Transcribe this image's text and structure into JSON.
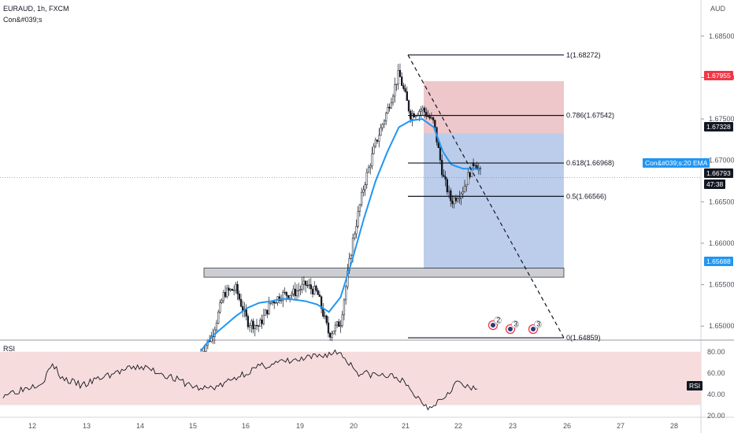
{
  "header": {
    "symbol_line": "EURAUD, 1h, FXCM",
    "indicator_line": "Con&#039;s"
  },
  "price_axis": {
    "currency": "AUD",
    "tags": {
      "upper_zone": "1.67955",
      "mid_zone": "1.67328",
      "current_price": "1.66793",
      "countdown": "47:38",
      "lower_zone": "1.65688",
      "ema_label": "Con&#039;s:20 EMA"
    }
  },
  "rsi_panel": {
    "label": "RSI",
    "tag": "RSI"
  },
  "colors": {
    "ema": "#2196f3",
    "profit_zone": "#9fb8e3",
    "loss_zone": "#e8b4b8",
    "rsi_band": "#f6dcdc",
    "candle": "#131722",
    "tag_red": "#f23645",
    "tag_blue": "#2196f3",
    "tag_dark": "#131722"
  },
  "markers": [
    {
      "icon": "event-flag-icon",
      "count": "2"
    },
    {
      "icon": "event-flag-icon",
      "count": "3"
    },
    {
      "icon": "event-flag-icon",
      "count": "3"
    }
  ],
  "chart_data": {
    "type": "candlestick",
    "symbol": "EURAUD",
    "timeframe": "1h",
    "price_range": [
      1.6485,
      1.6865
    ],
    "y_ticks": [
      "1.65000",
      "1.65500",
      "1.66000",
      "1.66500",
      "1.67000",
      "1.67500",
      "1.68000",
      "1.68500"
    ],
    "x_ticks": [
      "12",
      "13",
      "14",
      "15",
      "16",
      "19",
      "20",
      "21",
      "22",
      "23",
      "26",
      "27",
      "28"
    ],
    "close_path": [
      [
        0,
        1.6468
      ],
      [
        10,
        1.649
      ],
      [
        20,
        1.654
      ],
      [
        30,
        1.6545
      ],
      [
        40,
        1.6505
      ],
      [
        50,
        1.65
      ],
      [
        60,
        1.6528
      ],
      [
        70,
        1.6538
      ],
      [
        80,
        1.654
      ],
      [
        90,
        1.655
      ],
      [
        100,
        1.654
      ],
      [
        110,
        1.649
      ],
      [
        120,
        1.6505
      ],
      [
        130,
        1.66
      ],
      [
        140,
        1.667
      ],
      [
        150,
        1.672
      ],
      [
        160,
        1.676
      ],
      [
        170,
        1.6805
      ],
      [
        175,
        1.678
      ],
      [
        180,
        1.6755
      ],
      [
        190,
        1.6762
      ],
      [
        200,
        1.6745
      ],
      [
        208,
        1.668
      ],
      [
        215,
        1.665
      ],
      [
        225,
        1.6665
      ],
      [
        235,
        1.67
      ],
      [
        240,
        1.6685
      ]
    ],
    "ema_path": [
      [
        0,
        1.647
      ],
      [
        10,
        1.6488
      ],
      [
        20,
        1.65
      ],
      [
        30,
        1.6512
      ],
      [
        40,
        1.6522
      ],
      [
        50,
        1.6528
      ],
      [
        60,
        1.653
      ],
      [
        70,
        1.6533
      ],
      [
        80,
        1.6532
      ],
      [
        90,
        1.653
      ],
      [
        100,
        1.6526
      ],
      [
        110,
        1.6517
      ],
      [
        120,
        1.6535
      ],
      [
        130,
        1.658
      ],
      [
        140,
        1.663
      ],
      [
        150,
        1.6675
      ],
      [
        160,
        1.671
      ],
      [
        170,
        1.674
      ],
      [
        180,
        1.6748
      ],
      [
        190,
        1.675
      ],
      [
        200,
        1.674
      ],
      [
        208,
        1.671
      ],
      [
        215,
        1.6695
      ],
      [
        225,
        1.669
      ],
      [
        235,
        1.669
      ],
      [
        240,
        1.6688
      ]
    ],
    "fibonacci": [
      {
        "label": "1(1.68272)",
        "price": 1.68272
      },
      {
        "label": "0.786(1.67542)",
        "price": 1.67542
      },
      {
        "label": "0.618(1.66968)",
        "price": 1.66968
      },
      {
        "label": "0.5(1.66566)",
        "price": 1.66566
      },
      {
        "label": "0(1.64859)",
        "price": 1.64859
      }
    ],
    "zones": {
      "stop_loss": [
        1.67328,
        1.67955
      ],
      "take_profit": [
        1.65688,
        1.67328
      ],
      "support_band": [
        1.6559,
        1.657
      ]
    },
    "rsi": {
      "range": [
        20,
        85
      ],
      "ticks": [
        "80.00",
        "60.00",
        "40.00",
        "20.00"
      ],
      "band": [
        30,
        80
      ],
      "values": [
        [
          0,
          40
        ],
        [
          10,
          45
        ],
        [
          20,
          52
        ],
        [
          25,
          68
        ],
        [
          30,
          55
        ],
        [
          40,
          48
        ],
        [
          50,
          56
        ],
        [
          60,
          62
        ],
        [
          70,
          66
        ],
        [
          80,
          60
        ],
        [
          90,
          52
        ],
        [
          100,
          45
        ],
        [
          110,
          48
        ],
        [
          120,
          58
        ],
        [
          130,
          66
        ],
        [
          140,
          70
        ],
        [
          150,
          72
        ],
        [
          160,
          76
        ],
        [
          170,
          80
        ],
        [
          175,
          70
        ],
        [
          180,
          60
        ],
        [
          190,
          58
        ],
        [
          200,
          56
        ],
        [
          208,
          40
        ],
        [
          215,
          28
        ],
        [
          222,
          36
        ],
        [
          230,
          52
        ],
        [
          235,
          46
        ],
        [
          240,
          44
        ]
      ]
    }
  }
}
